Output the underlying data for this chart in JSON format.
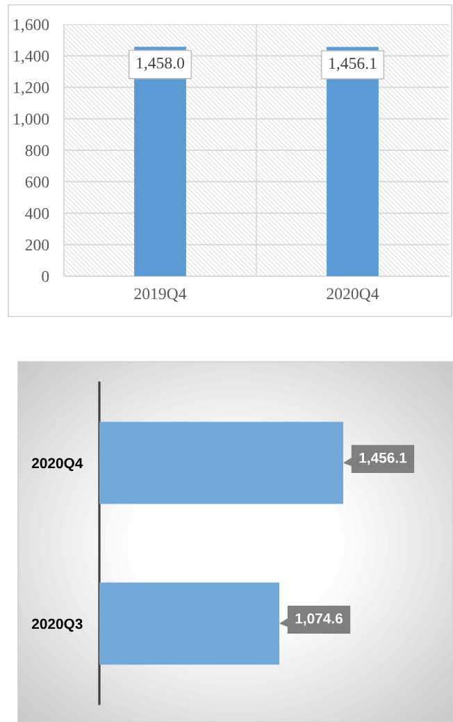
{
  "chart_data": [
    {
      "type": "bar",
      "categories": [
        "2019Q4",
        "2020Q4"
      ],
      "values": [
        1458.0,
        1456.1
      ],
      "color": "#5b9bd5",
      "ylim": [
        0,
        1600
      ],
      "yticks": [
        0,
        200,
        400,
        600,
        800,
        {
          "value": 1000,
          "label": "1,000"
        },
        {
          "value": 1200,
          "label": "1,200"
        },
        {
          "value": 1400,
          "label": "1,400"
        },
        {
          "value": 1600,
          "label": "1,600"
        }
      ],
      "grid": true,
      "value_labels": [
        "1,458.0",
        "1,456.1"
      ]
    },
    {
      "type": "bar",
      "orientation": "horizontal",
      "categories": [
        "2020Q4",
        "2020Q3"
      ],
      "values": [
        1456.1,
        1074.6
      ],
      "color": "#72a7d9",
      "value_labels": [
        "1,456.1",
        "1,074.6"
      ],
      "tick_labels": "y"
    }
  ]
}
